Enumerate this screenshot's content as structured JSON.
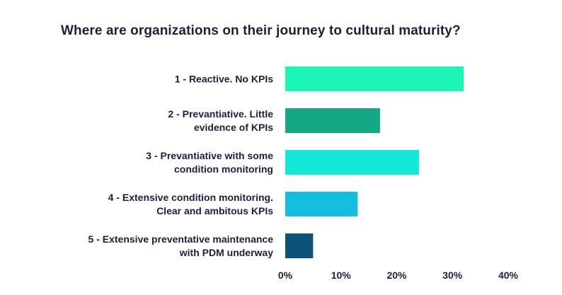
{
  "chart_data": {
    "type": "bar",
    "orientation": "horizontal",
    "title": "Where are organizations on their journey to cultural maturity?",
    "xlabel": "",
    "ylabel": "",
    "categories": [
      [
        "1 - Reactive. No KPIs"
      ],
      [
        "2 - Prevantiative. Little",
        "evidence of KPIs"
      ],
      [
        "3 - Prevantiative with some",
        "condition monitoring"
      ],
      [
        "4 - Extensive condition monitoring.",
        "Clear and ambitous KPIs"
      ],
      [
        "5 - Extensive preventative maintenance",
        "with PDM underway"
      ]
    ],
    "values": [
      32,
      17,
      24,
      13,
      5
    ],
    "unit": "%",
    "xlim": [
      0,
      40
    ],
    "ticks": [
      0,
      10,
      20,
      30,
      40
    ],
    "tick_labels": [
      "0%",
      "10%",
      "20%",
      "30%",
      "40%"
    ],
    "colors": [
      "#1cf5b5",
      "#14a887",
      "#16e8d8",
      "#15bde0",
      "#0b5478"
    ],
    "grid": false,
    "legend": "none"
  }
}
